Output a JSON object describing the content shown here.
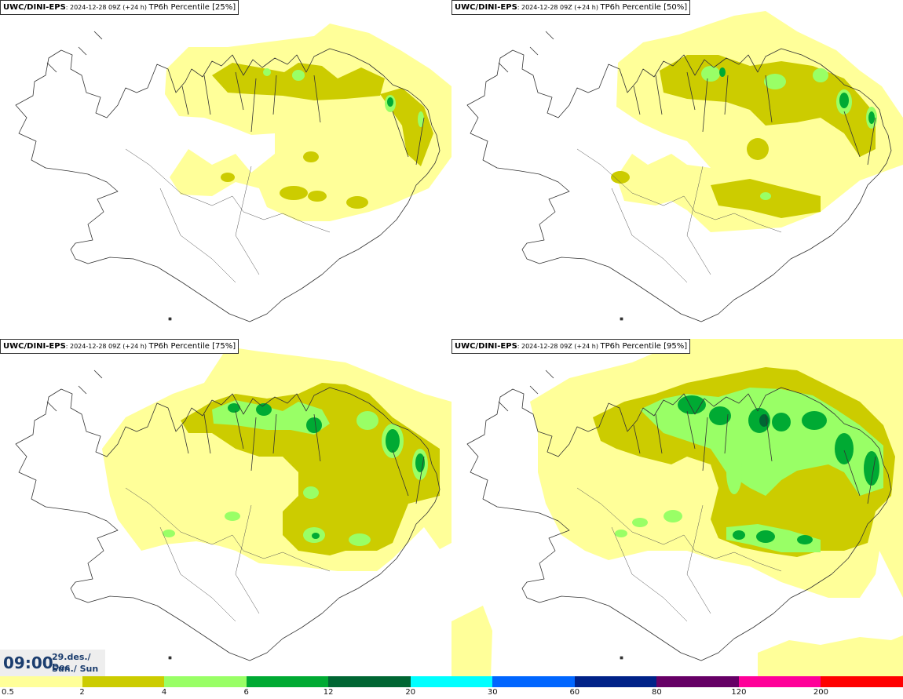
{
  "model": "UWC/DINI-EPS",
  "run_info": ": 2024-12-28 09Z (+24 h) ",
  "variable": "TP6h Percentile",
  "panels": [
    {
      "percentile": "[25%]"
    },
    {
      "percentile": "[50%]"
    },
    {
      "percentile": "[75%]"
    },
    {
      "percentile": "[95%]"
    }
  ],
  "valid_time": {
    "time": "09:00",
    "date": "29.des./ Dec",
    "weekday": "Sun./ Sun"
  },
  "legend": {
    "colors": [
      "#ffff99",
      "#cccc00",
      "#99ff66",
      "#00aa33",
      "#006633",
      "#00ffff",
      "#0066ff",
      "#002288",
      "#660066",
      "#ff0099",
      "#ff0000"
    ],
    "ticks": [
      "0.5",
      "2",
      "4",
      "6",
      "12",
      "20",
      "30",
      "60",
      "80",
      "120",
      "200"
    ]
  },
  "colors": {
    "coast": "#333333",
    "time_text": "#1b3d6e"
  }
}
